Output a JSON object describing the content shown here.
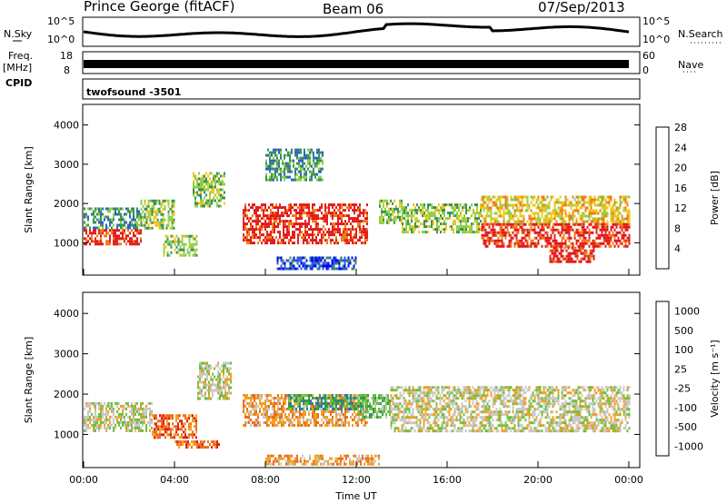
{
  "header": {
    "station": "Prince George (fitACF)",
    "beam": "Beam 06",
    "date": "07/Sep/2013"
  },
  "side_labels": {
    "nsky": "N.Sky",
    "nsearch": "N.Search",
    "freq": "Freq.",
    "mhz": "[MHz]",
    "nave": "Nave",
    "cpid": "CPID"
  },
  "noise_axis": {
    "left_top": "10^5",
    "left_bottom": "10^0",
    "right_top": "10^5",
    "right_bottom": "10^0"
  },
  "freq_axis": {
    "left_top": "18",
    "left_bottom": "8",
    "right_top": "60",
    "right_bottom": "0"
  },
  "cpid_text": "twofsound -3501",
  "chart_data": [
    {
      "type": "heatmap",
      "name": "power-panel",
      "title": "",
      "xlabel": "",
      "ylabel": "Slant Range [km]",
      "xlim": [
        0,
        24
      ],
      "ylim": [
        200,
        4500
      ],
      "yticks": [
        "1000",
        "2000",
        "3000",
        "4000"
      ],
      "colorbar": {
        "label": "Power [dB]",
        "ticks": [
          "4",
          "8",
          "12",
          "16",
          "20",
          "24",
          "28"
        ],
        "colors": [
          "#0000ff",
          "#2d5fcf",
          "#3a8f5a",
          "#8ad04a",
          "#f3c51a",
          "#f07a1a",
          "#e21a1a"
        ]
      },
      "regions": [
        {
          "t": [
            0.0,
            2.5
          ],
          "r": [
            950,
            1350
          ],
          "level": 6
        },
        {
          "t": [
            0.0,
            2.5
          ],
          "r": [
            1350,
            1900
          ],
          "level": 2
        },
        {
          "t": [
            2.5,
            4.0
          ],
          "r": [
            1400,
            2100
          ],
          "level": 3
        },
        {
          "t": [
            3.5,
            5.0
          ],
          "r": [
            700,
            1200
          ],
          "level": 3
        },
        {
          "t": [
            4.8,
            6.2
          ],
          "r": [
            1900,
            2800
          ],
          "level": 3
        },
        {
          "t": [
            7.0,
            12.5
          ],
          "r": [
            1000,
            2000
          ],
          "level": 6
        },
        {
          "t": [
            8.0,
            10.5
          ],
          "r": [
            2600,
            3400
          ],
          "level": 2
        },
        {
          "t": [
            8.5,
            12.0
          ],
          "r": [
            350,
            650
          ],
          "level": 1
        },
        {
          "t": [
            13.0,
            14.0
          ],
          "r": [
            1500,
            2100
          ],
          "level": 3
        },
        {
          "t": [
            14.0,
            17.5
          ],
          "r": [
            1300,
            2000
          ],
          "level": 3
        },
        {
          "t": [
            17.5,
            24.0
          ],
          "r": [
            1500,
            2200
          ],
          "level": 4
        },
        {
          "t": [
            17.5,
            24.0
          ],
          "r": [
            900,
            1500
          ],
          "level": 6
        },
        {
          "t": [
            20.5,
            22.5
          ],
          "r": [
            500,
            900
          ],
          "level": 6
        }
      ]
    },
    {
      "type": "heatmap",
      "name": "velocity-panel",
      "title": "",
      "xlabel": "Time UT",
      "ylabel": "Slant Range [km]",
      "xlim": [
        0,
        24
      ],
      "ylim": [
        200,
        4500
      ],
      "xticks": [
        "00:00",
        "04:00",
        "08:00",
        "12:00",
        "16:00",
        "20:00",
        "00:00"
      ],
      "yticks": [
        "1000",
        "2000",
        "3000",
        "4000"
      ],
      "colorbar": {
        "label": "Velocity [m s⁻¹]",
        "ticks": [
          "1000",
          "500",
          "100",
          "25",
          "-25",
          "-100",
          "-500",
          "-1000"
        ],
        "colors": [
          "#2b3fb0",
          "#2e74b8",
          "#2f9a4a",
          "#6cc03c",
          "#c8c8c8",
          "#f0a020",
          "#f06a18",
          "#e01a1a"
        ]
      },
      "regions": [
        {
          "t": [
            0.0,
            3.0
          ],
          "r": [
            1100,
            1800
          ],
          "level": 4
        },
        {
          "t": [
            3.0,
            5.0
          ],
          "r": [
            900,
            1500
          ],
          "level": 6
        },
        {
          "t": [
            4.0,
            6.0
          ],
          "r": [
            650,
            850
          ],
          "level": 6
        },
        {
          "t": [
            5.0,
            6.5
          ],
          "r": [
            1900,
            2800
          ],
          "level": 4
        },
        {
          "t": [
            7.0,
            12.5
          ],
          "r": [
            1200,
            2000
          ],
          "level": 5
        },
        {
          "t": [
            9.0,
            12.5
          ],
          "r": [
            1600,
            2000
          ],
          "level": 2
        },
        {
          "t": [
            12.0,
            13.5
          ],
          "r": [
            1400,
            2000
          ],
          "level": 3
        },
        {
          "t": [
            8.0,
            13.0
          ],
          "r": [
            250,
            500
          ],
          "level": 5
        },
        {
          "t": [
            13.5,
            24.0
          ],
          "r": [
            1100,
            2200
          ],
          "level": 4
        }
      ]
    }
  ]
}
